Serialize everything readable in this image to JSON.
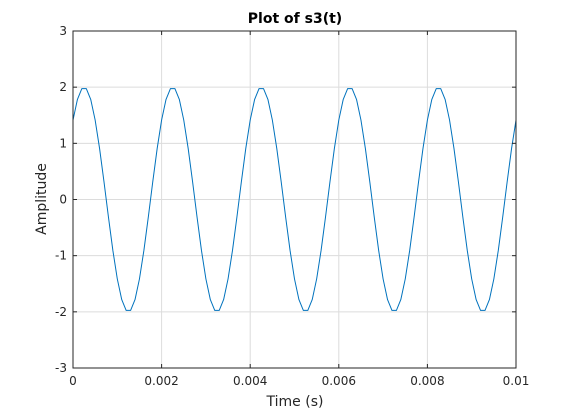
{
  "colors": {
    "series": "#0072BD",
    "grid": "#dcdcdc",
    "axis": "#262626",
    "background": "#ffffff"
  },
  "chart_data": {
    "type": "line",
    "title": "Plot of s3(t)",
    "xlabel": "Time (s)",
    "ylabel": "Amplitude",
    "xlim": [
      0,
      0.01
    ],
    "ylim": [
      -3,
      3
    ],
    "grid": true,
    "box": true,
    "x_ticks": [
      0,
      0.002,
      0.004,
      0.006,
      0.008,
      0.01
    ],
    "x_tick_labels": [
      "0",
      "0.002",
      "0.004",
      "0.006",
      "0.008",
      "0.01"
    ],
    "y_ticks": [
      -3,
      -2,
      -1,
      0,
      1,
      2,
      3
    ],
    "y_tick_labels": [
      "-3",
      "-2",
      "-1",
      "0",
      "1",
      "2",
      "3"
    ],
    "series": [
      {
        "x": [
          0,
          0.0001,
          0.0002,
          0.0003,
          0.0004,
          0.0005,
          0.0006,
          0.0007,
          0.0008,
          0.0009,
          0.001,
          0.0011,
          0.0012,
          0.0013,
          0.0014,
          0.0015,
          0.0016,
          0.0017,
          0.0018,
          0.0019,
          0.002,
          0.0021,
          0.0022,
          0.0023,
          0.0024,
          0.0025,
          0.0026,
          0.0027,
          0.0028,
          0.0029,
          0.003,
          0.0031,
          0.0032,
          0.0033,
          0.0034,
          0.0035,
          0.0036,
          0.0037,
          0.0038,
          0.0039,
          0.004,
          0.0041,
          0.0042,
          0.0043,
          0.0044,
          0.0045,
          0.0046,
          0.0047,
          0.0048,
          0.0049,
          0.005,
          0.0051,
          0.0052,
          0.0053,
          0.0054,
          0.0055,
          0.0056,
          0.0057,
          0.0058,
          0.0059,
          0.006,
          0.0061,
          0.0062,
          0.0063,
          0.0064,
          0.0065,
          0.0066,
          0.0067,
          0.0068,
          0.0069,
          0.007,
          0.0071,
          0.0072,
          0.0073,
          0.0074,
          0.0075,
          0.0076,
          0.0077,
          0.0078,
          0.0079,
          0.008,
          0.0081,
          0.0082,
          0.0083,
          0.0084,
          0.0085,
          0.0086,
          0.0087,
          0.0088,
          0.0089,
          0.009,
          0.0091,
          0.0092,
          0.0093,
          0.0094,
          0.0095,
          0.0096,
          0.0097,
          0.0098,
          0.0099,
          0.01
        ],
        "y": [
          1.414,
          1.782,
          1.975,
          1.975,
          1.782,
          1.414,
          0.908,
          0.313,
          -0.313,
          -0.908,
          -1.414,
          -1.782,
          -1.975,
          -1.975,
          -1.782,
          -1.414,
          -0.908,
          -0.313,
          0.313,
          0.908,
          1.414,
          1.782,
          1.975,
          1.975,
          1.782,
          1.414,
          0.908,
          0.313,
          -0.313,
          -0.908,
          -1.414,
          -1.782,
          -1.975,
          -1.975,
          -1.782,
          -1.414,
          -0.908,
          -0.313,
          0.313,
          0.908,
          1.414,
          1.782,
          1.975,
          1.975,
          1.782,
          1.414,
          0.908,
          0.313,
          -0.313,
          -0.908,
          -1.414,
          -1.782,
          -1.975,
          -1.975,
          -1.782,
          -1.414,
          -0.908,
          -0.313,
          0.313,
          0.908,
          1.414,
          1.782,
          1.975,
          1.975,
          1.782,
          1.414,
          0.908,
          0.313,
          -0.313,
          -0.908,
          -1.414,
          -1.782,
          -1.975,
          -1.975,
          -1.782,
          -1.414,
          -0.908,
          -0.313,
          0.313,
          0.908,
          1.414,
          1.782,
          1.975,
          1.975,
          1.782,
          1.414,
          0.908,
          0.313,
          -0.313,
          -0.908,
          -1.414,
          -1.782,
          -1.975,
          -1.975,
          -1.782,
          -1.414,
          -0.908,
          -0.313,
          0.313,
          0.908,
          1.414
        ]
      }
    ]
  }
}
